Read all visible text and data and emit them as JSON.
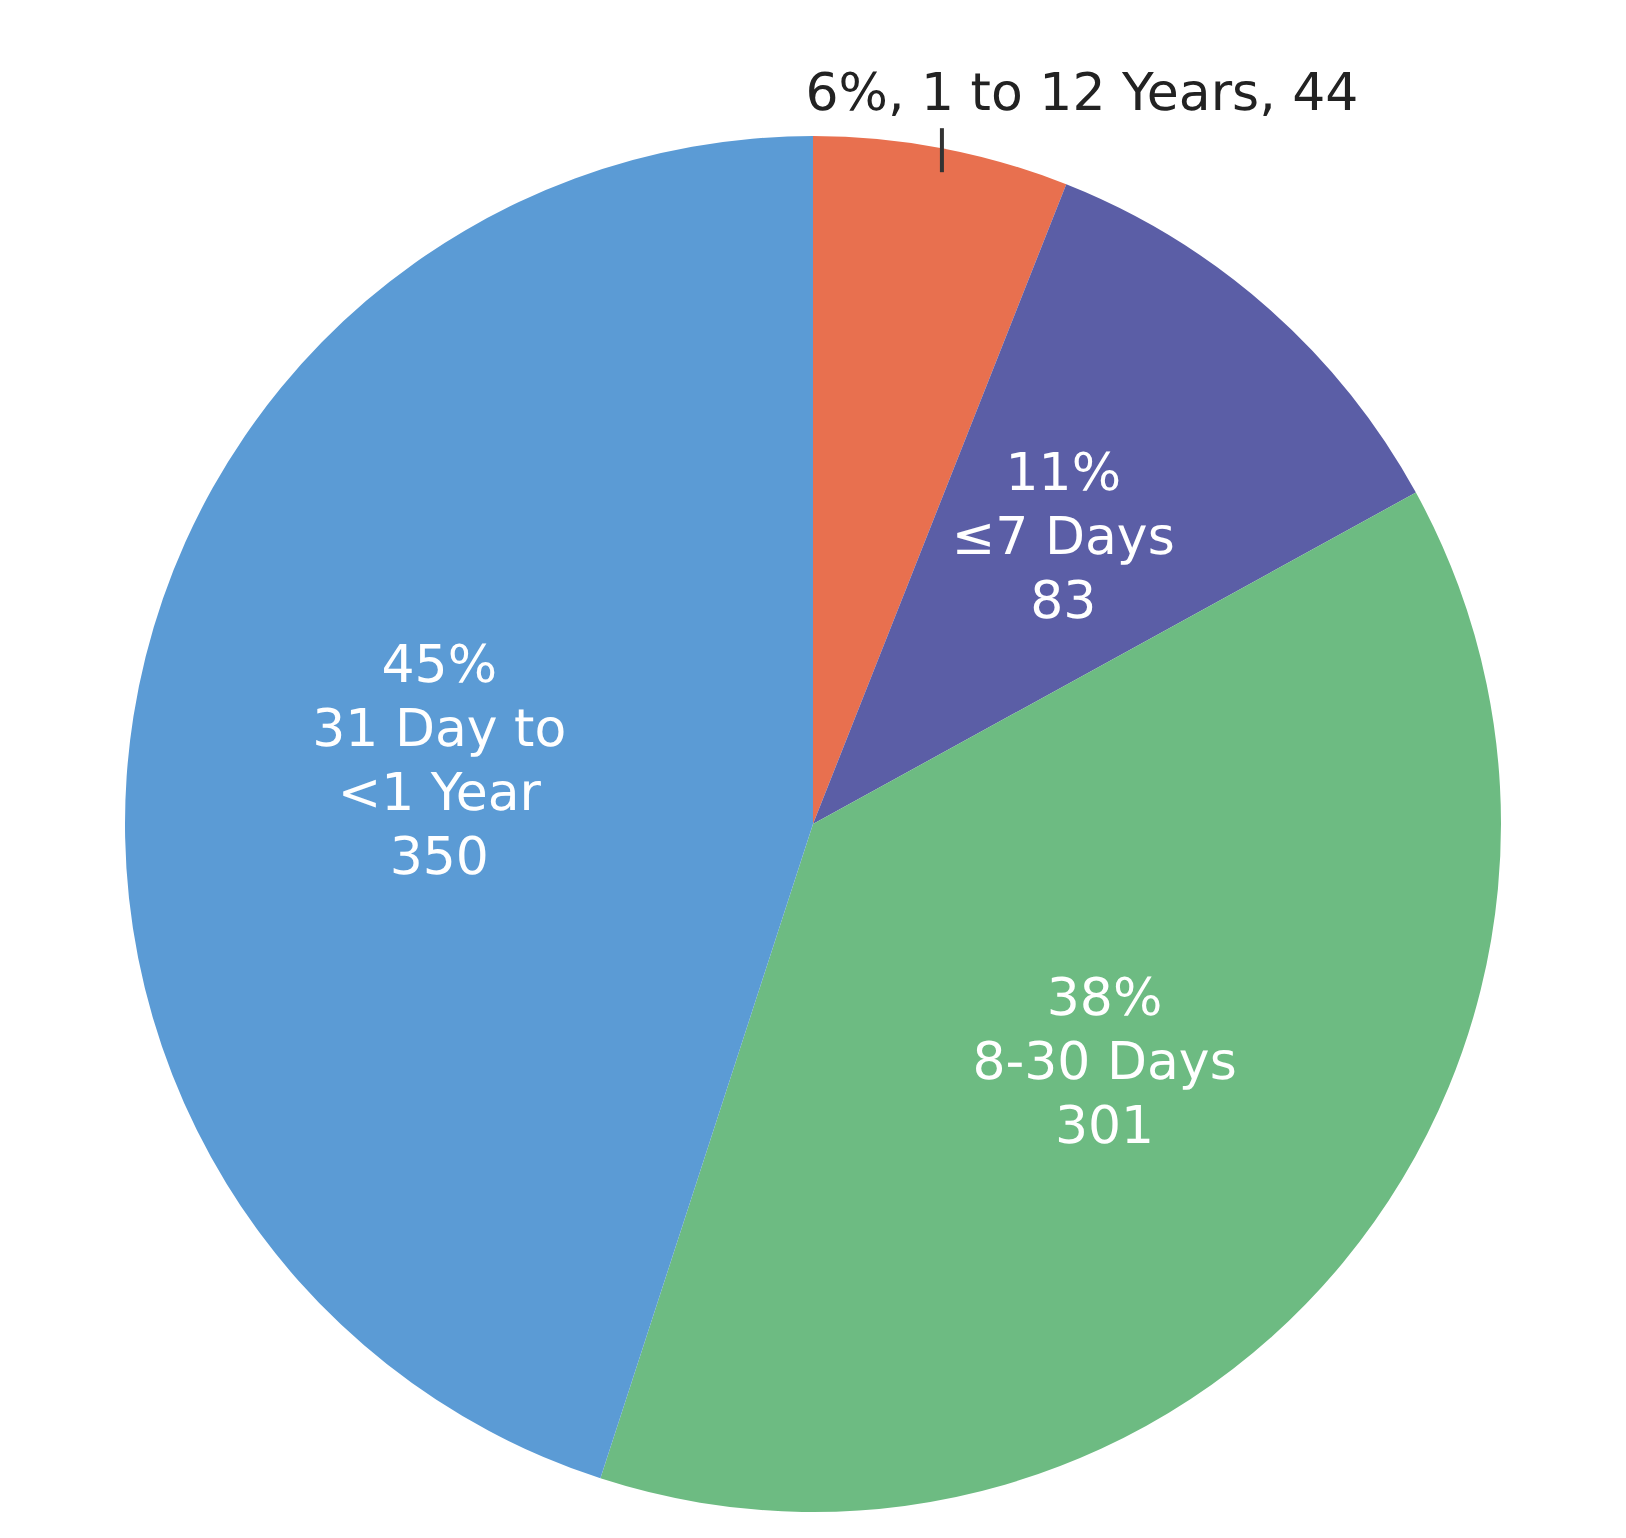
{
  "chart_data": {
    "type": "pie",
    "categories": [
      "1 to 12 Years",
      "≤7 Days",
      "8-30 Days",
      "31 Day to <1 Year"
    ],
    "values": [
      6,
      11,
      38,
      45
    ],
    "colors": [
      "#e8704f",
      "#5b5ea6",
      "#6dbb82",
      "#5b9bd5"
    ],
    "value_labels": [
      "6%,",
      "11%",
      "38%",
      "45%"
    ],
    "legend": false,
    "annotations": [
      {
        "text": ", 44",
        "x": "1 to 12 Years"
      },
      {
        "text": "83",
        "x": "≤7 Days"
      },
      {
        "text": "301",
        "x": "8-30 Days"
      },
      {
        "text": "350",
        "x": "31 Day to <1 Year"
      }
    ]
  }
}
